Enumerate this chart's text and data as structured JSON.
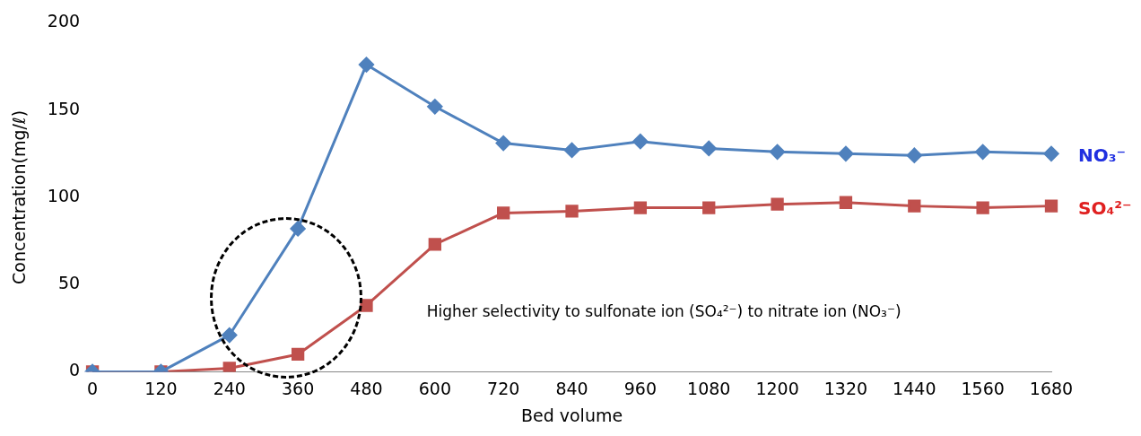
{
  "chart_data": {
    "type": "line",
    "xlabel": "Bed volume",
    "ylabel": "Concentration(mg/ℓ)",
    "categories": [
      "0",
      "120",
      "240",
      "360",
      "480",
      "600",
      "720",
      "840",
      "960",
      "1080",
      "1200",
      "1320",
      "1440",
      "1560",
      "1680"
    ],
    "series": [
      {
        "name": "NO₃⁻",
        "color": "#4f81bd",
        "marker": "diamond",
        "values": [
          0,
          0,
          21,
          82,
          176,
          152,
          131,
          127,
          132,
          128,
          126,
          125,
          124,
          126,
          125
        ]
      },
      {
        "name": "SO₄²⁻",
        "color": "#c0504d",
        "marker": "square",
        "values": [
          0,
          0,
          2,
          10,
          38,
          73,
          91,
          92,
          94,
          94,
          96,
          97,
          95,
          94,
          95
        ]
      }
    ],
    "ylim": [
      0,
      200
    ],
    "yticks": [
      0,
      50,
      100,
      150,
      200
    ],
    "grid": false,
    "legend": false,
    "annotations": [
      "Higher selectivity to sulfonate ion (SO₄²⁻) to nitrate ion (NO₃⁻)"
    ]
  }
}
